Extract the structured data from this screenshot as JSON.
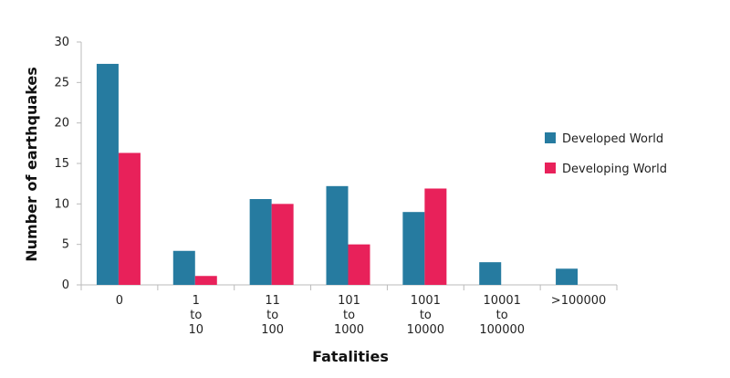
{
  "chart_data": {
    "type": "bar",
    "title": "",
    "xlabel": "Fatalities",
    "ylabel": "Number of earthquakes",
    "ylim": [
      0,
      30
    ],
    "yticks": [
      0,
      5,
      10,
      15,
      20,
      25,
      30
    ],
    "categories": [
      [
        "0"
      ],
      [
        "1",
        "to",
        "10"
      ],
      [
        "11",
        "to",
        "100"
      ],
      [
        "101",
        "to",
        "1000"
      ],
      [
        "1001",
        "to",
        "10000"
      ],
      [
        "10001",
        "to",
        "100000"
      ],
      [
        ">100000"
      ]
    ],
    "series": [
      {
        "name": "Developed World",
        "color": "#267ba0",
        "values": [
          27.3,
          4.2,
          10.6,
          12.2,
          9.0,
          2.8,
          2.0
        ]
      },
      {
        "name": "Developing World",
        "color": "#e8215a",
        "values": [
          16.3,
          1.1,
          10.0,
          5.0,
          11.9,
          0,
          0
        ]
      }
    ],
    "legend_position": "right",
    "grid": false
  }
}
